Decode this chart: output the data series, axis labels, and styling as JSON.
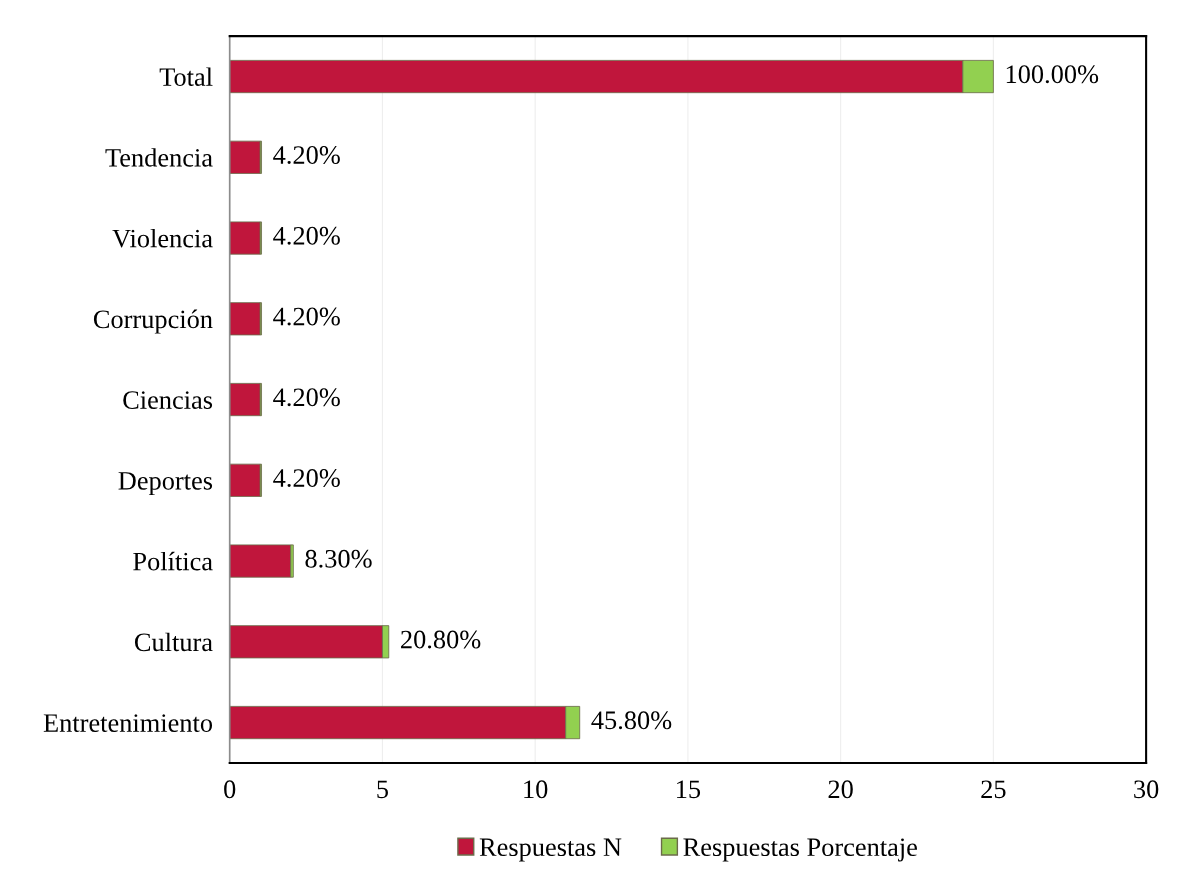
{
  "chart_data": {
    "type": "bar",
    "orientation": "horizontal",
    "stacked": true,
    "categories": [
      "Total",
      "Tendencia",
      "Violencia",
      "Corrupción",
      "Ciencias",
      "Deportes",
      "Política",
      "Cultura",
      "Entretenimiento"
    ],
    "series": [
      {
        "name": "Respuestas N",
        "color": "#c0163c",
        "values": [
          24,
          1,
          1,
          1,
          1,
          1,
          2,
          5,
          11
        ]
      },
      {
        "name": "Respuestas Porcentaje",
        "color": "#92d050",
        "values": [
          1.0,
          0.042,
          0.042,
          0.042,
          0.042,
          0.042,
          0.083,
          0.208,
          0.458
        ],
        "value_labels": [
          "100.00%",
          "4.20%",
          "4.20%",
          "4.20%",
          "4.20%",
          "4.20%",
          "8.30%",
          "20.80%",
          "45.80%"
        ]
      }
    ],
    "xlim": [
      0,
      30
    ],
    "xticks": [
      0,
      5,
      10,
      15,
      20,
      25,
      30
    ],
    "grid": "x",
    "legend": "bottom"
  }
}
